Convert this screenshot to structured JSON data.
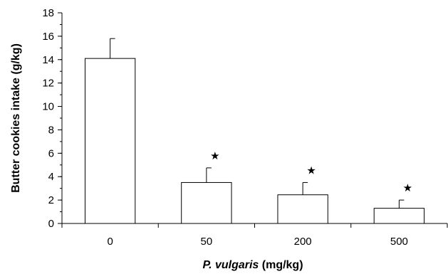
{
  "chart_data": {
    "type": "bar",
    "categories": [
      "0",
      "50",
      "200",
      "500"
    ],
    "values": [
      14.1,
      3.5,
      2.45,
      1.3
    ],
    "errors": [
      1.7,
      1.25,
      1.05,
      0.7
    ],
    "significance": [
      false,
      true,
      true,
      true
    ],
    "significance_marker": "★",
    "ylabel": "Butter cookies intake (g/kg)",
    "xlabel_italic": "P. vulgaris",
    "xlabel_rest": " (mg/kg)",
    "ylim": [
      0,
      18
    ],
    "y_major_ticks": [
      "0",
      "2",
      "4",
      "6",
      "8",
      "10",
      "12",
      "14",
      "16",
      "18"
    ],
    "y_tick_step_minor": 1,
    "grid": false,
    "legend": "none",
    "bar_fill": "#ffffff",
    "bar_stroke": "#000000"
  }
}
